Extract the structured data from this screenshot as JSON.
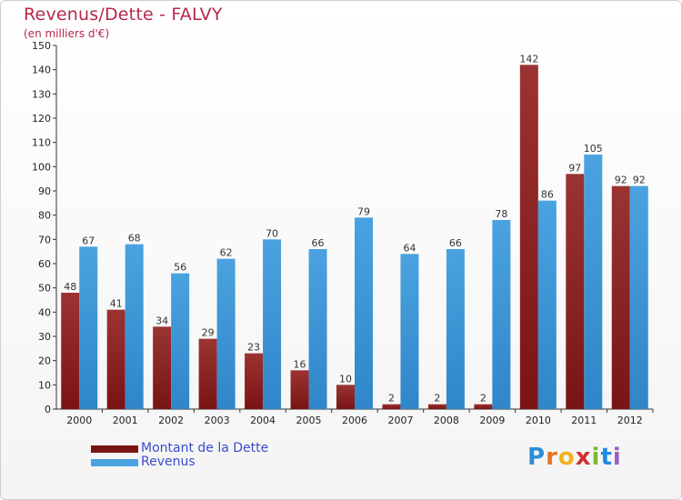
{
  "title": "Revenus/Dette - FALVY",
  "subtitle": "(en milliers d'€)",
  "legend": {
    "dette_label": "Montant de la Dette",
    "revenus_label": "Revenus"
  },
  "brand": {
    "letters": [
      "P",
      "r",
      "o",
      "x",
      "i",
      "t",
      "i"
    ],
    "colors": [
      "#2b8fd6",
      "#e8741e",
      "#f2b21a",
      "#d32f2f",
      "#7cb82f",
      "#1e88e5",
      "#9b5fc0"
    ]
  },
  "colors": {
    "dette": "#7a1414",
    "dette_light": "#9b3333",
    "revenus": "#4aa3e0",
    "revenus_dark": "#2f86c8"
  },
  "chart_data": {
    "type": "bar",
    "title": "Revenus/Dette - FALVY",
    "ylabel": "(en milliers d'€)",
    "xlabel": "",
    "ylim": [
      0,
      150
    ],
    "yticks": [
      0,
      10,
      20,
      30,
      40,
      50,
      60,
      70,
      80,
      90,
      100,
      110,
      120,
      130,
      140,
      150
    ],
    "categories": [
      "2000",
      "2001",
      "2002",
      "2003",
      "2004",
      "2005",
      "2006",
      "2007",
      "2008",
      "2009",
      "2010",
      "2011",
      "2012"
    ],
    "series": [
      {
        "name": "Montant de la Dette",
        "values": [
          48,
          41,
          34,
          29,
          23,
          16,
          10,
          2,
          2,
          2,
          142,
          97,
          92
        ]
      },
      {
        "name": "Revenus",
        "values": [
          67,
          68,
          56,
          62,
          70,
          66,
          79,
          64,
          66,
          78,
          86,
          105,
          92
        ]
      }
    ],
    "grid": false,
    "legend_position": "bottom-left"
  }
}
